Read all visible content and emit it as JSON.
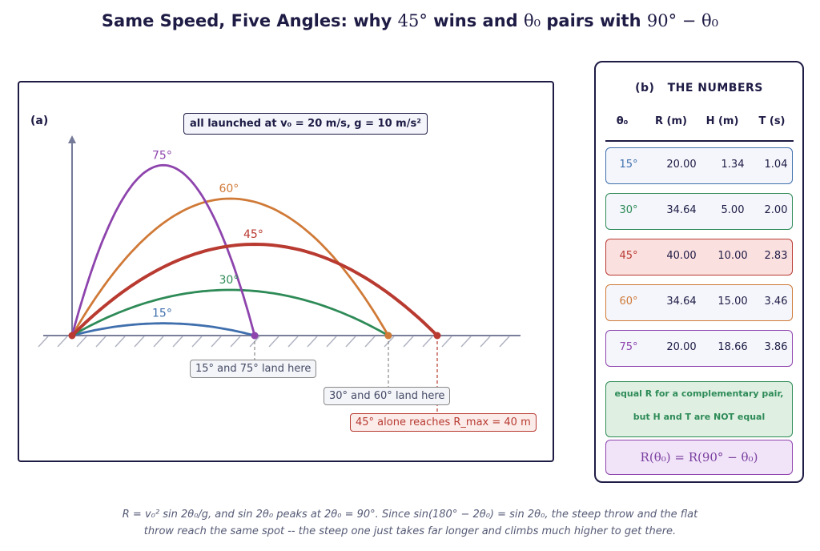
{
  "title": {
    "prefix": "Same Speed, Five Angles: why",
    "angle45": "45°",
    "middle": "wins and",
    "theta": "θ₀",
    "suffix": "pairs with",
    "complement": "90° − θ₀"
  },
  "panel_a": {
    "label": "(a)",
    "info_text": "all launched at v₀ = 20 m/s,  g = 10 m/s²",
    "annotations": {
      "pair_15_75": "15° and 75° land here",
      "pair_30_60": "30° and 60° land here",
      "max_45": "45° alone reaches R_max = 40 m"
    }
  },
  "panel_b": {
    "label": "(b)",
    "title": "THE NUMBERS",
    "headers": [
      "θ₀",
      "R (m)",
      "H (m)",
      "T (s)"
    ],
    "rows": [
      {
        "angle": "15°",
        "R": "20.00",
        "H": "1.34",
        "T": "1.04",
        "color": "#3f6fad"
      },
      {
        "angle": "30°",
        "R": "34.64",
        "H": "5.00",
        "T": "2.00",
        "color": "#2e8b57"
      },
      {
        "angle": "45°",
        "R": "40.00",
        "H": "10.00",
        "T": "2.83",
        "color": "#b83a30"
      },
      {
        "angle": "60°",
        "R": "34.64",
        "H": "15.00",
        "T": "3.46",
        "color": "#d07a38"
      },
      {
        "angle": "75°",
        "R": "20.00",
        "H": "18.66",
        "T": "3.86",
        "color": "#8e44ad"
      }
    ],
    "note_line1": "equal R for a complementary pair,",
    "note_line2": "but H and T are NOT equal",
    "formula": "R(θ₀) = R(90° − θ₀)"
  },
  "caption": {
    "line1": "R = v₀² sin 2θ₀/g, and sin 2θ₀ peaks at 2θ₀ = 90°. Since sin(180° − 2θ₀) = sin 2θ₀, the steep throw and the flat",
    "line2": "throw reach the same spot -- the steep one just takes far longer and climbs much higher to get there."
  },
  "chart_data": {
    "type": "line",
    "v0": 20,
    "g": 10,
    "series": [
      {
        "name": "15°",
        "angle": 15,
        "range": 20.0,
        "max_height": 1.34,
        "color": "#3f6fad"
      },
      {
        "name": "30°",
        "angle": 30,
        "range": 34.64,
        "max_height": 5.0,
        "color": "#2e8b57"
      },
      {
        "name": "45°",
        "angle": 45,
        "range": 40.0,
        "max_height": 10.0,
        "color": "#b83a30"
      },
      {
        "name": "60°",
        "angle": 60,
        "range": 34.64,
        "max_height": 15.0,
        "color": "#d07a38"
      },
      {
        "name": "75°",
        "angle": 75,
        "range": 20.0,
        "max_height": 18.66,
        "color": "#8e44ad"
      }
    ],
    "grid": false
  }
}
